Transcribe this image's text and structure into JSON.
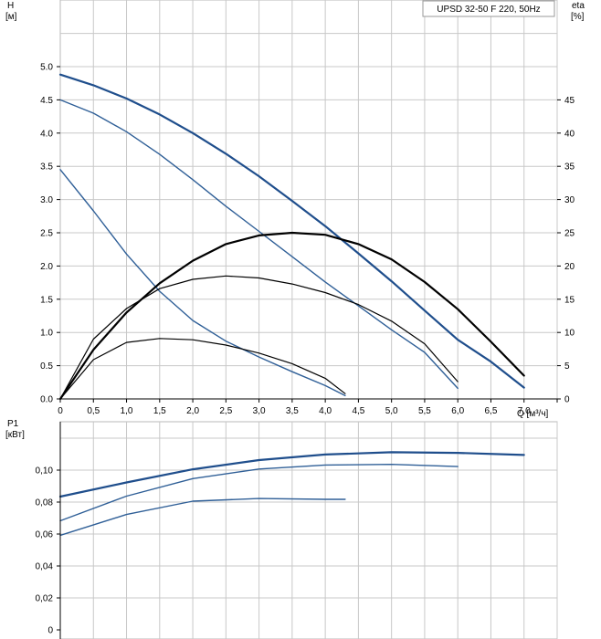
{
  "chart_data": [
    {
      "type": "line",
      "title": "UPSD 32-50 F 220, 50Hz",
      "ylabel_name": "H",
      "ylabel_unit": "[м]",
      "y2label_name": "eta",
      "y2label_unit": "[%]",
      "xlabel": "Q [м³/ч]",
      "xlim": [
        0,
        7.5
      ],
      "ylim": [
        0,
        5.0
      ],
      "y2lim": [
        0,
        50
      ],
      "x_ticks": [
        "0",
        "0,5",
        "1,0",
        "1,5",
        "2,0",
        "2,5",
        "3,0",
        "3,5",
        "4,0",
        "4,5",
        "5,0",
        "5,5",
        "6,0",
        "6,5",
        "7,0"
      ],
      "y_ticks": [
        "0.0",
        "0.5",
        "1.0",
        "1.5",
        "2.0",
        "2.5",
        "3.0",
        "3.5",
        "4.0",
        "4.5",
        "5.0"
      ],
      "y2_ticks": [
        "0",
        "5",
        "10",
        "15",
        "20",
        "25",
        "30",
        "35",
        "40",
        "45"
      ],
      "grid": true,
      "series": [
        {
          "kind": "head",
          "axis": "left",
          "color": "#1f4e8c",
          "width": 2.2,
          "points": [
            [
              0,
              4.88
            ],
            [
              0.5,
              4.72
            ],
            [
              1.0,
              4.52
            ],
            [
              1.5,
              4.28
            ],
            [
              2.0,
              4.0
            ],
            [
              2.5,
              3.69
            ],
            [
              3.0,
              3.35
            ],
            [
              3.5,
              2.98
            ],
            [
              4.0,
              2.6
            ],
            [
              4.5,
              2.19
            ],
            [
              5.0,
              1.77
            ],
            [
              5.5,
              1.33
            ],
            [
              6.0,
              0.89
            ],
            [
              6.5,
              0.56
            ],
            [
              7.0,
              0.17
            ]
          ]
        },
        {
          "kind": "head",
          "axis": "left",
          "color": "#2f5f97",
          "width": 1.4,
          "points": [
            [
              0,
              4.5
            ],
            [
              0.5,
              4.3
            ],
            [
              1.0,
              4.02
            ],
            [
              1.5,
              3.68
            ],
            [
              2.0,
              3.3
            ],
            [
              2.5,
              2.9
            ],
            [
              3.0,
              2.52
            ],
            [
              3.5,
              2.14
            ],
            [
              4.0,
              1.76
            ],
            [
              4.5,
              1.4
            ],
            [
              5.0,
              1.04
            ],
            [
              5.5,
              0.7
            ],
            [
              6.0,
              0.16
            ]
          ]
        },
        {
          "kind": "head",
          "axis": "left",
          "color": "#2f5f97",
          "width": 1.4,
          "points": [
            [
              0,
              3.45
            ],
            [
              0.5,
              2.83
            ],
            [
              1.0,
              2.18
            ],
            [
              1.5,
              1.62
            ],
            [
              2.0,
              1.18
            ],
            [
              2.5,
              0.87
            ],
            [
              3.0,
              0.63
            ],
            [
              3.5,
              0.41
            ],
            [
              4.0,
              0.2
            ],
            [
              4.3,
              0.05
            ]
          ]
        },
        {
          "kind": "efficiency",
          "axis": "right",
          "color": "#000000",
          "width": 2.2,
          "points": [
            [
              0,
              0
            ],
            [
              0.5,
              7.4
            ],
            [
              1.0,
              13.0
            ],
            [
              1.5,
              17.4
            ],
            [
              2.0,
              20.8
            ],
            [
              2.5,
              23.3
            ],
            [
              3.0,
              24.6
            ],
            [
              3.5,
              25.0
            ],
            [
              4.0,
              24.7
            ],
            [
              4.5,
              23.3
            ],
            [
              5.0,
              21.0
            ],
            [
              5.5,
              17.6
            ],
            [
              6.0,
              13.5
            ],
            [
              6.5,
              8.6
            ],
            [
              7.0,
              3.5
            ]
          ]
        },
        {
          "kind": "efficiency",
          "axis": "right",
          "color": "#000000",
          "width": 1.2,
          "points": [
            [
              0,
              0
            ],
            [
              0.5,
              9.0
            ],
            [
              1.0,
              13.6
            ],
            [
              1.5,
              16.6
            ],
            [
              2.0,
              18.0
            ],
            [
              2.5,
              18.5
            ],
            [
              3.0,
              18.2
            ],
            [
              3.5,
              17.3
            ],
            [
              4.0,
              16.0
            ],
            [
              4.5,
              14.2
            ],
            [
              5.0,
              11.7
            ],
            [
              5.5,
              8.3
            ],
            [
              6.0,
              2.6
            ]
          ]
        },
        {
          "kind": "efficiency",
          "axis": "right",
          "color": "#000000",
          "width": 1.2,
          "points": [
            [
              0,
              0
            ],
            [
              0.5,
              5.9
            ],
            [
              1.0,
              8.5
            ],
            [
              1.5,
              9.1
            ],
            [
              2.0,
              8.9
            ],
            [
              2.5,
              8.1
            ],
            [
              3.0,
              6.9
            ],
            [
              3.5,
              5.3
            ],
            [
              4.0,
              3.1
            ],
            [
              4.3,
              0.8
            ]
          ]
        }
      ]
    },
    {
      "type": "line",
      "ylabel_name": "P1",
      "ylabel_unit": "[кВт]",
      "xlim": [
        0,
        7.5
      ],
      "ylim": [
        0,
        0.12
      ],
      "y_ticks": [
        "0",
        "0,02",
        "0,04",
        "0,06",
        "0,08",
        "0,10"
      ],
      "grid": true,
      "series": [
        {
          "kind": "power",
          "color": "#1f4e8c",
          "width": 2.2,
          "points": [
            [
              0,
              0.0834
            ],
            [
              1.0,
              0.0923
            ],
            [
              2.0,
              0.1005
            ],
            [
              3.0,
              0.1063
            ],
            [
              4.0,
              0.1098
            ],
            [
              5.0,
              0.1112
            ],
            [
              6.0,
              0.1108
            ],
            [
              7.0,
              0.1095
            ]
          ]
        },
        {
          "kind": "power",
          "color": "#2f5f97",
          "width": 1.4,
          "points": [
            [
              0,
              0.0683
            ],
            [
              1.0,
              0.0837
            ],
            [
              2.0,
              0.0947
            ],
            [
              3.0,
              0.1007
            ],
            [
              4.0,
              0.1032
            ],
            [
              5.0,
              0.1036
            ],
            [
              6.0,
              0.1022
            ]
          ]
        },
        {
          "kind": "power",
          "color": "#2f5f97",
          "width": 1.4,
          "points": [
            [
              0,
              0.0592
            ],
            [
              1.0,
              0.0722
            ],
            [
              2.0,
              0.0806
            ],
            [
              3.0,
              0.0822
            ],
            [
              4.0,
              0.0817
            ],
            [
              4.3,
              0.0817
            ]
          ]
        }
      ]
    }
  ]
}
